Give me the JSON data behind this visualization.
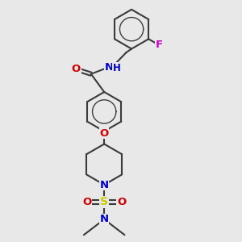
{
  "bg_color": "#e8e8e8",
  "bond_color": "#3a3a3a",
  "O_color": "#cc0000",
  "N_color": "#0000cc",
  "S_color": "#cccc00",
  "F_color": "#cc00cc",
  "line_width": 1.5,
  "font_size": 9.5,
  "fig_size": [
    3.0,
    3.0
  ],
  "dpi": 100,
  "xlim": [
    0,
    10
  ],
  "ylim": [
    0,
    10
  ]
}
